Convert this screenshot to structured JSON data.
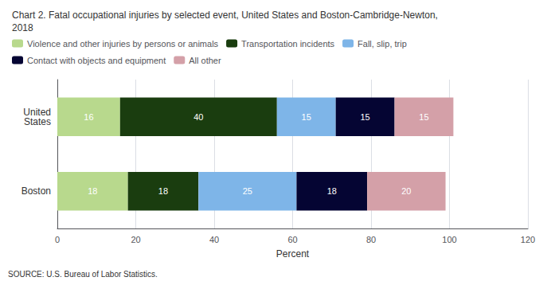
{
  "chart_data": {
    "type": "bar",
    "orientation": "horizontal",
    "stacked": true,
    "data_labels": true,
    "title": "Chart 2. Fatal occupational injuries by selected event, United States and Boston-Cambridge-Newton,\n2018",
    "categories": [
      "United\nStates",
      "Boston"
    ],
    "series": [
      {
        "name": "Violence and other injuries by persons or animals",
        "color": "#b8d98d",
        "values": [
          16,
          18
        ]
      },
      {
        "name": "Transportation incidents",
        "color": "#1a3d0f",
        "values": [
          40,
          18
        ]
      },
      {
        "name": "Fall, slip, trip",
        "color": "#7eb5e8",
        "values": [
          15,
          25
        ]
      },
      {
        "name": "Contact with objects and equipment",
        "color": "#050533",
        "values": [
          15,
          18
        ]
      },
      {
        "name": "All other",
        "color": "#d4a0a8",
        "values": [
          15,
          20
        ]
      }
    ],
    "xlabel": "Percent",
    "xlim": [
      0,
      120
    ],
    "xticks": [
      0,
      20,
      40,
      60,
      80,
      100,
      120
    ],
    "grid": true,
    "legend": "top",
    "annotations": [
      "SOURCE: U.S. Bureau of Labor Statistics."
    ]
  }
}
